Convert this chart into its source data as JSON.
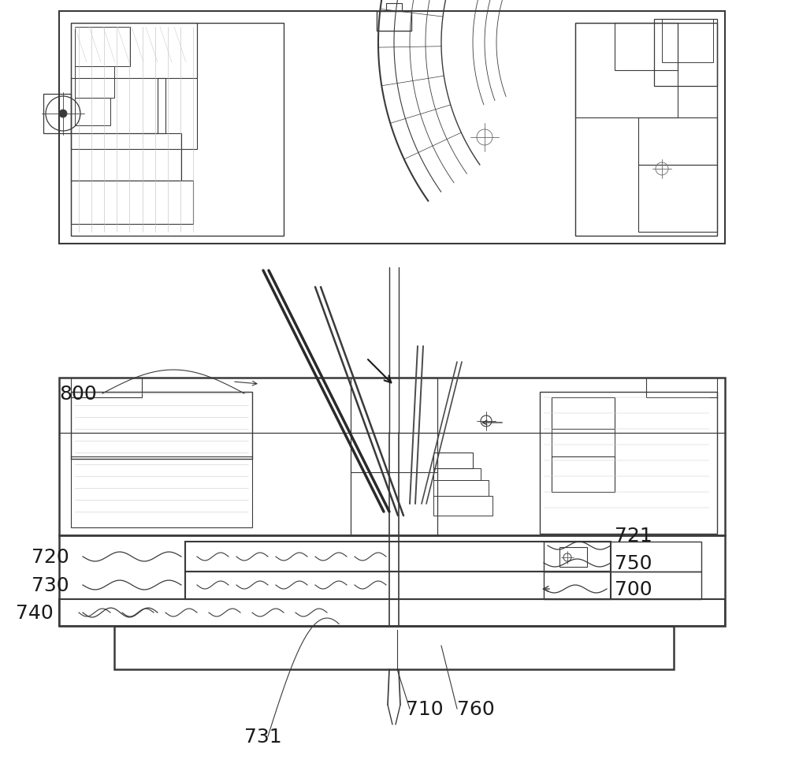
{
  "bg_color": "#ffffff",
  "line_color": "#3a3a3a",
  "label_color": "#1a1a1a",
  "fig_width": 10.0,
  "fig_height": 9.79,
  "dpi": 100
}
